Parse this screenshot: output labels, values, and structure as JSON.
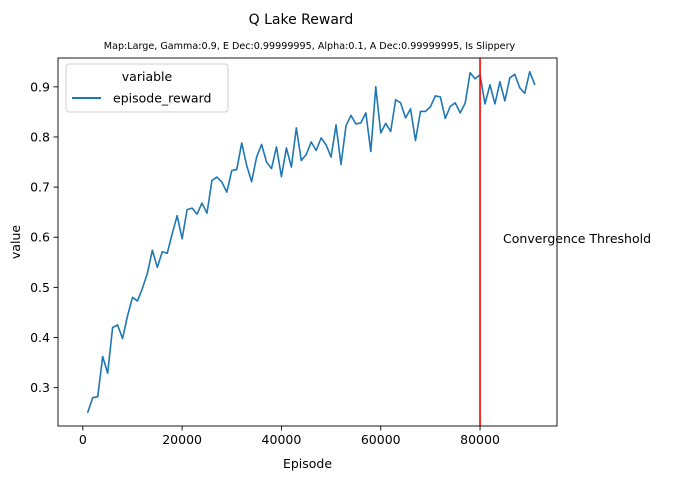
{
  "chart_data": {
    "type": "line",
    "title": "Q Lake Reward",
    "subtitle": "Map:Large, Gamma:0.9, E Dec:0.99999995, Alpha:0.1, A Dec:0.99999995, Is Slippery",
    "xlabel": "Episode",
    "ylabel": "value",
    "xlim": [
      -5000,
      95500
    ],
    "ylim": [
      0.2235,
      0.9575
    ],
    "x_ticks": [
      0,
      20000,
      40000,
      60000,
      80000
    ],
    "y_ticks": [
      0.3,
      0.4,
      0.5,
      0.6,
      0.7,
      0.8,
      0.9
    ],
    "legend": {
      "title": "variable",
      "placement": "top-left",
      "entries": [
        {
          "label": "episode_reward",
          "color": "#1f77b4"
        }
      ]
    },
    "grid": false,
    "series": [
      {
        "name": "episode_reward",
        "color": "#1f77b4",
        "x": [
          1000,
          2000,
          3000,
          4000,
          5000,
          6000,
          7000,
          8000,
          9000,
          10000,
          11000,
          12000,
          13000,
          14000,
          15000,
          16000,
          17000,
          18000,
          19000,
          20000,
          21000,
          22000,
          23000,
          24000,
          25000,
          26000,
          27000,
          28000,
          29000,
          30000,
          31000,
          32000,
          33000,
          34000,
          35000,
          36000,
          37000,
          38000,
          39000,
          40000,
          41000,
          42000,
          43000,
          44000,
          45000,
          46000,
          47000,
          48000,
          49000,
          50000,
          51000,
          52000,
          53000,
          54000,
          55000,
          56000,
          57000,
          58000,
          59000,
          60000,
          61000,
          62000,
          63000,
          64000,
          65000,
          66000,
          67000,
          68000,
          69000,
          70000,
          71000,
          72000,
          73000,
          74000,
          75000,
          76000,
          77000,
          78000,
          79000,
          80000,
          81000,
          82000,
          83000,
          84000,
          85000,
          86000,
          87000,
          88000,
          89000,
          90000,
          91000
        ],
        "y": [
          0.251,
          0.28,
          0.282,
          0.362,
          0.329,
          0.42,
          0.425,
          0.398,
          0.443,
          0.48,
          0.473,
          0.498,
          0.528,
          0.574,
          0.54,
          0.571,
          0.568,
          0.607,
          0.643,
          0.597,
          0.655,
          0.658,
          0.646,
          0.668,
          0.648,
          0.713,
          0.72,
          0.71,
          0.69,
          0.733,
          0.735,
          0.788,
          0.743,
          0.711,
          0.76,
          0.785,
          0.75,
          0.737,
          0.78,
          0.721,
          0.778,
          0.74,
          0.818,
          0.753,
          0.765,
          0.79,
          0.773,
          0.798,
          0.784,
          0.76,
          0.824,
          0.745,
          0.822,
          0.843,
          0.826,
          0.828,
          0.848,
          0.771,
          0.9,
          0.808,
          0.827,
          0.811,
          0.874,
          0.868,
          0.838,
          0.856,
          0.793,
          0.851,
          0.851,
          0.86,
          0.882,
          0.88,
          0.837,
          0.861,
          0.868,
          0.848,
          0.867,
          0.928,
          0.916,
          0.924,
          0.866,
          0.904,
          0.866,
          0.91,
          0.872,
          0.918,
          0.925,
          0.898,
          0.887,
          0.93,
          0.905
        ]
      }
    ],
    "annotations": [
      {
        "type": "vline",
        "x": 80000,
        "color": "#ff0000",
        "label": "Convergence Threshold"
      }
    ]
  }
}
